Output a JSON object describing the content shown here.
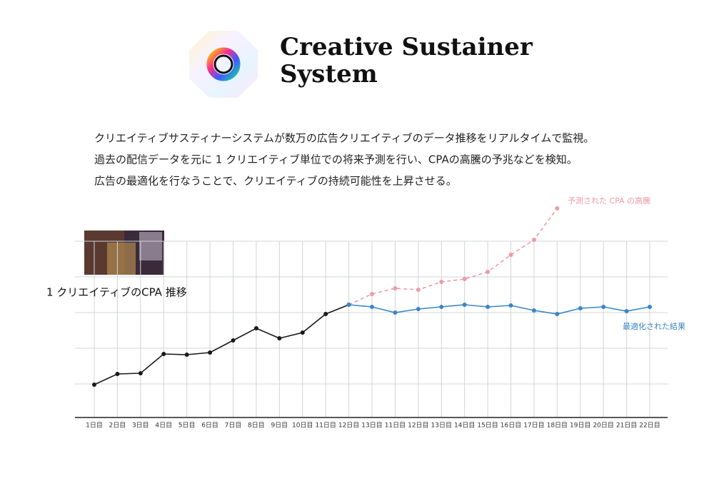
{
  "header": {
    "title_lines": [
      "Creative Sustainer",
      "System"
    ]
  },
  "description": [
    "クリエイティブサスティナーシステムが数万の広告クリエイティブのデータ推移をリアルタイムで監視。",
    "過去の配信データを元に 1 クリエイティブ単位での将来予測を行い、CPAの高騰の予兆などを検知。",
    "広告の最適化を行なうことで、クリエイティブの持続可能性を上昇させる。"
  ],
  "chart_data": {
    "type": "line",
    "categories": [
      "1日目",
      "2日目",
      "3日目",
      "4日目",
      "5日目",
      "6日目",
      "7日目",
      "8日目",
      "9日目",
      "10日目",
      "11日目",
      "12日目",
      "13日目",
      "11日目",
      "12日目",
      "13日目",
      "14日目",
      "15日目",
      "16日目",
      "17日目",
      "18日目",
      "19日目",
      "20日目",
      "21日目",
      "22日目"
    ],
    "series": [
      {
        "name": "1 クリエイティブのCPA 推移",
        "color": "#1a1a1a",
        "dashed": false,
        "values": [
          0.98,
          1.28,
          1.3,
          1.84,
          1.82,
          1.88,
          2.22,
          2.56,
          2.28,
          2.44,
          2.96,
          3.22,
          null,
          null,
          null,
          null,
          null,
          null,
          null,
          null,
          null,
          null,
          null,
          null,
          null
        ]
      },
      {
        "name": "予測された CPA の高騰",
        "color": "#ef9aa6",
        "dashed": true,
        "values": [
          null,
          null,
          null,
          null,
          null,
          null,
          null,
          null,
          null,
          null,
          null,
          3.22,
          3.52,
          3.68,
          3.64,
          3.86,
          3.94,
          4.14,
          4.62,
          5.04,
          5.92,
          null,
          null,
          null,
          null
        ]
      },
      {
        "name": "最適化された結果",
        "color": "#3a86c4",
        "dashed": false,
        "values": [
          null,
          null,
          null,
          null,
          null,
          null,
          null,
          null,
          null,
          null,
          null,
          3.22,
          3.16,
          3.0,
          3.1,
          3.16,
          3.22,
          3.16,
          3.2,
          3.06,
          2.96,
          3.12,
          3.16,
          3.04,
          3.16
        ]
      }
    ],
    "ylim": [
      0,
      5
    ],
    "yticks": [
      1,
      2,
      3,
      4,
      5
    ],
    "grid": true
  }
}
